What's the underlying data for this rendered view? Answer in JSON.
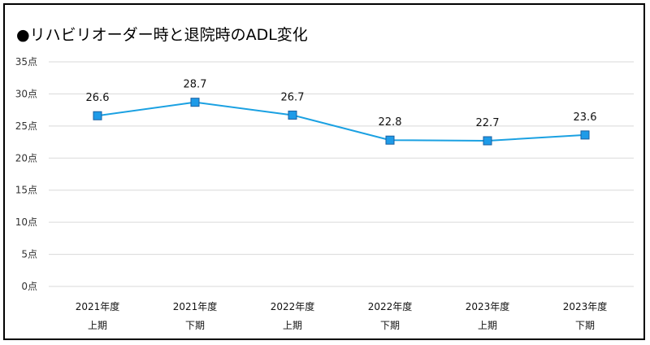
{
  "chart_data": {
    "type": "line",
    "title": "●リハビリオーダー時と退院時のADL変化",
    "categories": [
      [
        "2021年度",
        "上期"
      ],
      [
        "2021年度",
        "下期"
      ],
      [
        "2022年度",
        "上期"
      ],
      [
        "2022年度",
        "下期"
      ],
      [
        "2023年度",
        "上期"
      ],
      [
        "2023年度",
        "下期"
      ]
    ],
    "series": [
      {
        "values": [
          26.6,
          28.7,
          26.7,
          22.8,
          22.7,
          23.6
        ]
      }
    ],
    "data_labels": [
      "26.6",
      "28.7",
      "26.7",
      "22.8",
      "22.7",
      "23.6"
    ],
    "ylim": [
      0,
      35
    ],
    "y_ticks": [
      0,
      5,
      10,
      15,
      20,
      25,
      30,
      35
    ],
    "y_tick_labels": [
      "0点",
      "5点",
      "10点",
      "15点",
      "20点",
      "25点",
      "30点",
      "35点"
    ],
    "grid": true,
    "line_color": "#1ba1e2",
    "marker_fill": "#1e9be8",
    "marker_edge": "#1a5fa0",
    "grid_color": "#d9d9d9"
  }
}
